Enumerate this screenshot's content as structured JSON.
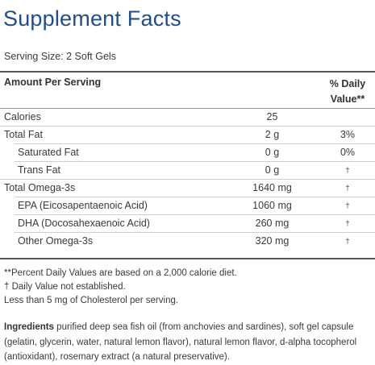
{
  "title": "Supplement Facts",
  "serving_size": "Serving Size: 2 Soft Gels",
  "header": {
    "amount_per_serving": "Amount Per Serving",
    "daily_value_line1": "% Daily",
    "daily_value_line2": "Value**"
  },
  "rows": [
    {
      "name": "Calories",
      "amount": "25",
      "dv": ""
    },
    {
      "name": "Total Fat",
      "amount": "2 g",
      "dv": "3%"
    },
    {
      "name": "Saturated Fat",
      "amount": "0 g",
      "dv": "0%"
    },
    {
      "name": "Trans Fat",
      "amount": "0 g",
      "dv": "†"
    },
    {
      "name": "Total Omega-3s",
      "amount": "1640 mg",
      "dv": "†"
    },
    {
      "name": "EPA (Eicosapentaenoic Acid)",
      "amount": "1060 mg",
      "dv": "†"
    },
    {
      "name": "DHA (Docosahexaenoic Acid)",
      "amount": "260 mg",
      "dv": "†"
    },
    {
      "name": "Other Omega-3s",
      "amount": "320 mg",
      "dv": "†"
    }
  ],
  "footnotes": {
    "percent_dv": "**Percent Daily Values are based on a 2,000 calorie diet.",
    "dv_not_established": "† Daily Value not established.",
    "cholesterol": "Less than 5 mg of Cholesterol per serving."
  },
  "ingredients": {
    "label": "Ingredients",
    "text": " purified deep sea fish oil (from anchovies and sardines), soft gel capsule (gelatin, glycerin, water, natural lemon flavor), natural lemon flavor, d-alpha tocopherol (antioxidant), rosemary extract (a natural preservative)."
  }
}
